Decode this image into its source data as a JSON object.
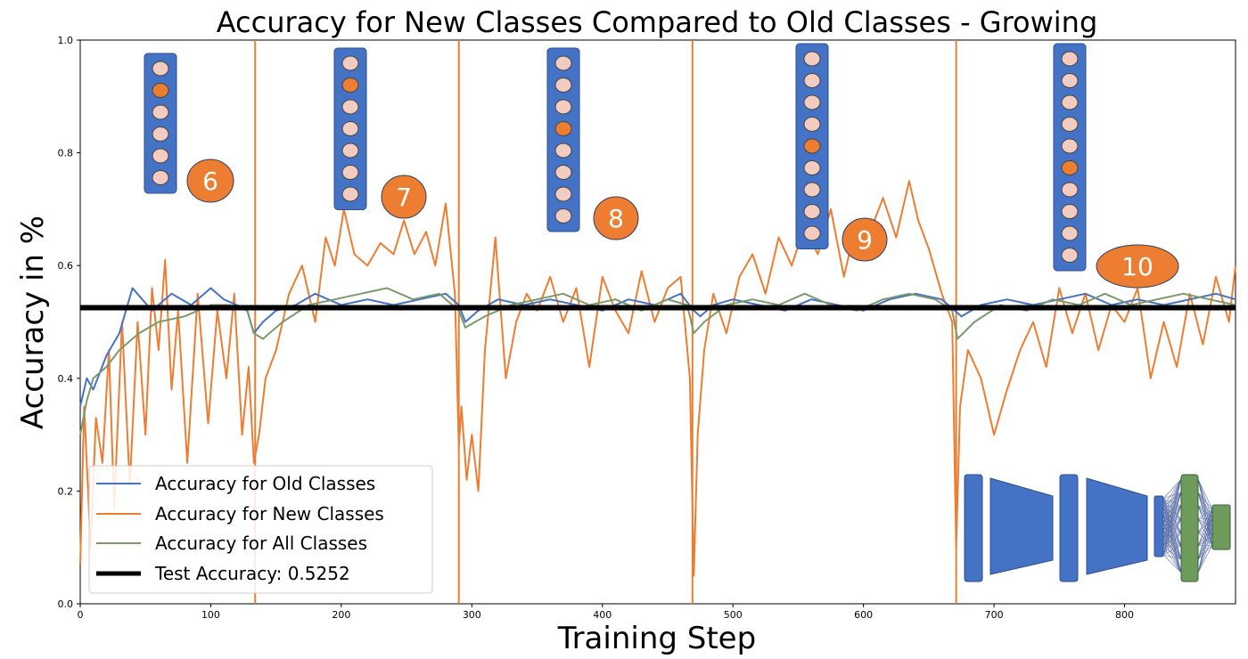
{
  "chart_data": {
    "type": "line",
    "title": "Accuracy for New Classes Compared to Old Classes - Growing",
    "xlabel": "Training Step",
    "ylabel": "Accuracy in %",
    "xlim": [
      0,
      885
    ],
    "ylim": [
      0.0,
      1.0
    ],
    "x_ticks": [
      0,
      100,
      200,
      300,
      400,
      500,
      600,
      700,
      800
    ],
    "y_ticks": [
      0.0,
      0.2,
      0.4,
      0.6,
      0.8,
      1.0
    ],
    "legend_location": "lower-left",
    "grid": false,
    "series": [
      {
        "name": "Accuracy for Old Classes",
        "color": "#4472c4",
        "x": [
          0,
          5,
          10,
          20,
          30,
          40,
          55,
          70,
          85,
          100,
          110,
          120,
          128,
          133,
          140,
          150,
          165,
          180,
          200,
          220,
          240,
          260,
          280,
          290,
          295,
          305,
          320,
          340,
          360,
          380,
          400,
          420,
          440,
          460,
          470,
          475,
          485,
          500,
          520,
          540,
          560,
          580,
          600,
          620,
          640,
          660,
          670,
          675,
          690,
          710,
          730,
          750,
          770,
          790,
          810,
          830,
          850,
          870,
          885
        ],
        "values": [
          0.35,
          0.4,
          0.38,
          0.44,
          0.48,
          0.56,
          0.52,
          0.55,
          0.53,
          0.56,
          0.54,
          0.53,
          0.52,
          0.48,
          0.5,
          0.52,
          0.53,
          0.55,
          0.53,
          0.54,
          0.53,
          0.54,
          0.55,
          0.53,
          0.5,
          0.52,
          0.54,
          0.53,
          0.54,
          0.53,
          0.52,
          0.54,
          0.53,
          0.55,
          0.52,
          0.51,
          0.53,
          0.54,
          0.53,
          0.52,
          0.54,
          0.53,
          0.52,
          0.54,
          0.55,
          0.54,
          0.52,
          0.51,
          0.53,
          0.54,
          0.53,
          0.54,
          0.55,
          0.53,
          0.54,
          0.53,
          0.54,
          0.55,
          0.54
        ]
      },
      {
        "name": "Accuracy for New Classes",
        "color": "#ed7d31",
        "x": [
          0,
          3,
          8,
          12,
          17,
          22,
          26,
          32,
          38,
          44,
          50,
          55,
          60,
          65,
          70,
          75,
          82,
          90,
          98,
          105,
          112,
          118,
          124,
          129,
          133,
          137,
          142,
          150,
          160,
          170,
          180,
          188,
          195,
          202,
          210,
          220,
          230,
          240,
          248,
          256,
          265,
          272,
          280,
          287,
          290,
          292,
          296,
          300,
          305,
          310,
          318,
          326,
          334,
          342,
          350,
          360,
          370,
          380,
          390,
          400,
          410,
          420,
          430,
          440,
          450,
          460,
          467,
          470,
          473,
          478,
          485,
          495,
          505,
          515,
          525,
          535,
          545,
          555,
          565,
          575,
          585,
          595,
          605,
          615,
          625,
          635,
          642,
          650,
          660,
          668,
          671,
          674,
          680,
          690,
          700,
          710,
          720,
          730,
          740,
          750,
          760,
          770,
          780,
          790,
          800,
          810,
          820,
          830,
          840,
          850,
          860,
          870,
          880,
          885
        ],
        "values": [
          0.07,
          0.35,
          0.1,
          0.33,
          0.25,
          0.45,
          0.17,
          0.5,
          0.21,
          0.5,
          0.3,
          0.56,
          0.45,
          0.61,
          0.38,
          0.52,
          0.25,
          0.55,
          0.32,
          0.52,
          0.4,
          0.55,
          0.3,
          0.42,
          0.25,
          0.3,
          0.4,
          0.45,
          0.55,
          0.6,
          0.5,
          0.65,
          0.6,
          0.7,
          0.62,
          0.6,
          0.64,
          0.62,
          0.68,
          0.62,
          0.66,
          0.6,
          0.71,
          0.55,
          0.28,
          0.35,
          0.22,
          0.3,
          0.2,
          0.45,
          0.65,
          0.4,
          0.5,
          0.55,
          0.52,
          0.58,
          0.5,
          0.56,
          0.42,
          0.58,
          0.52,
          0.48,
          0.59,
          0.5,
          0.56,
          0.58,
          0.4,
          0.05,
          0.3,
          0.45,
          0.55,
          0.48,
          0.58,
          0.62,
          0.55,
          0.65,
          0.6,
          0.67,
          0.62,
          0.7,
          0.58,
          0.68,
          0.66,
          0.72,
          0.65,
          0.75,
          0.68,
          0.63,
          0.55,
          0.5,
          0.1,
          0.35,
          0.45,
          0.4,
          0.3,
          0.38,
          0.45,
          0.5,
          0.42,
          0.56,
          0.48,
          0.55,
          0.45,
          0.53,
          0.5,
          0.56,
          0.4,
          0.5,
          0.42,
          0.55,
          0.46,
          0.58,
          0.5,
          0.6
        ]
      },
      {
        "name": "Accuracy for All Classes",
        "color": "#7a9a6a",
        "x": [
          0,
          5,
          10,
          20,
          30,
          45,
          60,
          80,
          100,
          115,
          128,
          133,
          140,
          155,
          175,
          195,
          215,
          235,
          255,
          275,
          290,
          295,
          310,
          330,
          350,
          370,
          390,
          410,
          430,
          450,
          465,
          470,
          478,
          495,
          515,
          535,
          555,
          575,
          595,
          615,
          635,
          655,
          668,
          672,
          685,
          705,
          725,
          745,
          765,
          785,
          805,
          825,
          845,
          865,
          885
        ],
        "values": [
          0.3,
          0.36,
          0.4,
          0.42,
          0.45,
          0.48,
          0.5,
          0.51,
          0.53,
          0.53,
          0.52,
          0.48,
          0.47,
          0.5,
          0.53,
          0.54,
          0.55,
          0.56,
          0.54,
          0.55,
          0.52,
          0.49,
          0.51,
          0.53,
          0.54,
          0.55,
          0.53,
          0.54,
          0.52,
          0.54,
          0.53,
          0.48,
          0.5,
          0.53,
          0.54,
          0.53,
          0.55,
          0.53,
          0.52,
          0.54,
          0.55,
          0.54,
          0.52,
          0.47,
          0.5,
          0.53,
          0.52,
          0.54,
          0.53,
          0.55,
          0.53,
          0.54,
          0.55,
          0.54,
          0.53
        ]
      },
      {
        "name": "Test Accuracy: 0.5252",
        "color": "#000000",
        "type": "hline",
        "y": 0.5252
      }
    ],
    "vertical_lines": {
      "color": "#ed7d31",
      "x": [
        134,
        290,
        469,
        671
      ]
    },
    "annotations": [
      {
        "label": "6",
        "neurons": 6,
        "highlighted": 2
      },
      {
        "label": "7",
        "neurons": 7,
        "highlighted": 2
      },
      {
        "label": "8",
        "neurons": 8,
        "highlighted": 4
      },
      {
        "label": "9",
        "neurons": 9,
        "highlighted": 5
      },
      {
        "label": "10",
        "neurons": 10,
        "highlighted": 6
      }
    ],
    "colors": {
      "column": "#4472c4",
      "neuron": "#f2ccc0",
      "neuron_highlight": "#ed7d31",
      "number_circle": "#ed7d31",
      "network_dense": "#6e9a5a"
    },
    "inset": {
      "description_icon": "network-architecture-icon"
    }
  }
}
